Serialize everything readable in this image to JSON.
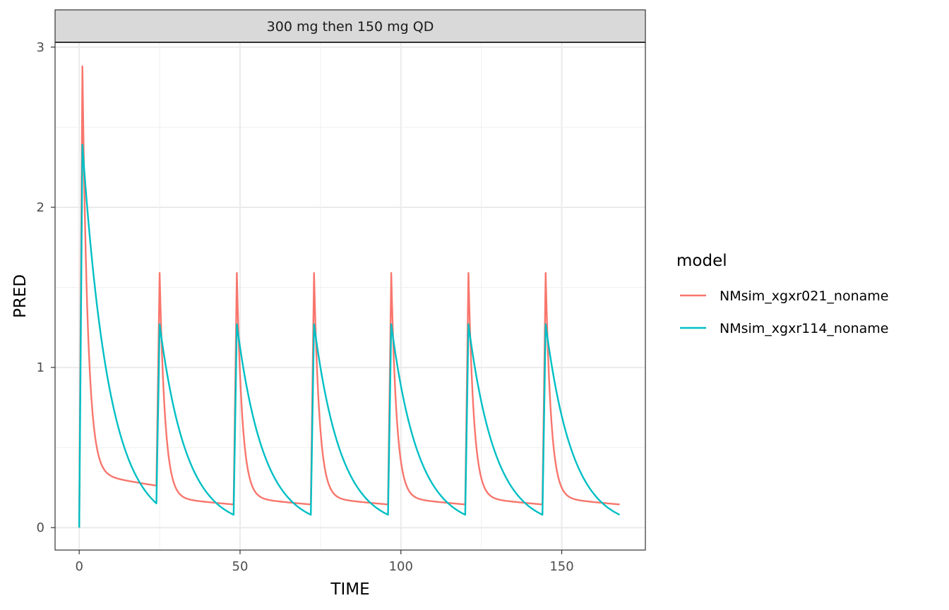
{
  "chart_data": {
    "type": "line",
    "title": "",
    "facet_label": "300 mg then 150 mg QD",
    "xlabel": "TIME",
    "ylabel": "PRED",
    "xlim": [
      -7.5,
      176
    ],
    "ylim": [
      -0.14,
      3.03
    ],
    "xticks": [
      0,
      50,
      100,
      150
    ],
    "yticks": [
      0,
      1,
      2,
      3
    ],
    "x_minor_gridlines": [
      25,
      75,
      125
    ],
    "y_minor_gridlines": [
      0.5,
      1.5,
      2.5
    ],
    "grid": true,
    "legend": {
      "title": "model",
      "position": "right"
    },
    "dosing": {
      "first_peak_time": 1,
      "interval": 24,
      "doses": 7,
      "end_time": 168
    },
    "series": [
      {
        "name": "NMsim_xgxr021_noname",
        "color": "#F8766D",
        "first_peak": 2.88,
        "subsequent_peak": 1.59,
        "trough": 0.14,
        "fast_rate": 0.6,
        "slow_rate": 0.012,
        "fast_fraction": 0.88
      },
      {
        "name": "NMsim_xgxr114_noname",
        "color": "#00BFC4",
        "first_peak": 2.39,
        "subsequent_peak": 1.27,
        "trough": 0.08,
        "fast_rate": 0.12,
        "slow_rate": 0.12,
        "fast_fraction": 1.0
      }
    ]
  }
}
